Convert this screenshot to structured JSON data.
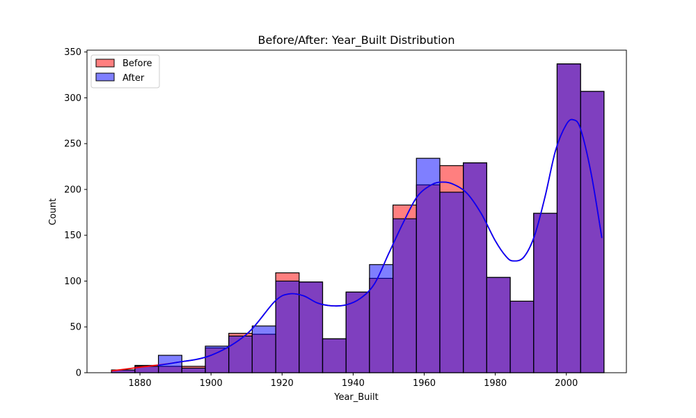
{
  "chart_data": {
    "type": "bar",
    "title": "Before/After: Year_Built Distribution",
    "xlabel": "Year_Built",
    "ylabel": "Count",
    "xlim": [
      1865.1,
      2016.9
    ],
    "ylim": [
      0,
      352
    ],
    "x_ticks": [
      1880,
      1900,
      1920,
      1940,
      1960,
      1980,
      2000
    ],
    "y_ticks": [
      0,
      50,
      100,
      150,
      200,
      250,
      300,
      350
    ],
    "bin_edges": [
      1872,
      1878.6,
      1885.2,
      1891.8,
      1898.4,
      1905,
      1911.6,
      1918.2,
      1924.8,
      1931.4,
      1938,
      1944.6,
      1951.2,
      1957.8,
      1964.4,
      1971,
      1977.6,
      1984.2,
      1990.8,
      1997.4,
      2004,
      2010.6
    ],
    "series": [
      {
        "name": "Before",
        "color": "#ff0000",
        "fill_opacity": 0.5,
        "values": [
          3,
          8,
          7,
          7,
          27,
          43,
          42,
          109,
          99,
          37,
          88,
          103,
          183,
          205,
          226,
          229,
          104,
          78,
          174,
          337,
          307
        ],
        "kde_color": "#ff0000",
        "kde": [
          [
            1872,
            2
          ],
          [
            1880,
            6
          ],
          [
            1890,
            11
          ],
          [
            1900,
            19
          ],
          [
            1910,
            42
          ],
          [
            1918,
            78
          ],
          [
            1922,
            86
          ],
          [
            1926,
            84
          ],
          [
            1930,
            76
          ],
          [
            1934,
            73
          ],
          [
            1938,
            74
          ],
          [
            1942,
            81
          ],
          [
            1946,
            97
          ],
          [
            1950,
            130
          ],
          [
            1954,
            163
          ],
          [
            1958,
            192
          ],
          [
            1962,
            205
          ],
          [
            1965,
            208
          ],
          [
            1968,
            206
          ],
          [
            1972,
            196
          ],
          [
            1976,
            174
          ],
          [
            1980,
            144
          ],
          [
            1983,
            127
          ],
          [
            1985,
            122
          ],
          [
            1988,
            126
          ],
          [
            1991,
            149
          ],
          [
            1994,
            192
          ],
          [
            1997,
            243
          ],
          [
            2000,
            271
          ],
          [
            2002,
            276
          ],
          [
            2004,
            266
          ],
          [
            2007,
            217
          ],
          [
            2010,
            147
          ]
        ]
      },
      {
        "name": "After",
        "color": "#0000ff",
        "fill_opacity": 0.5,
        "values": [
          3,
          7,
          19,
          5,
          29,
          40,
          51,
          100,
          99,
          37,
          88,
          118,
          168,
          234,
          197,
          229,
          104,
          78,
          174,
          337,
          307
        ],
        "kde_color": "#0000ff",
        "kde": [
          [
            1885,
            8
          ],
          [
            1890,
            11
          ],
          [
            1900,
            19
          ],
          [
            1910,
            42
          ],
          [
            1918,
            78
          ],
          [
            1922,
            86
          ],
          [
            1926,
            84
          ],
          [
            1930,
            76
          ],
          [
            1934,
            73
          ],
          [
            1938,
            74
          ],
          [
            1942,
            81
          ],
          [
            1946,
            97
          ],
          [
            1950,
            130
          ],
          [
            1954,
            163
          ],
          [
            1958,
            192
          ],
          [
            1962,
            205
          ],
          [
            1965,
            208
          ],
          [
            1968,
            206
          ],
          [
            1972,
            196
          ],
          [
            1976,
            174
          ],
          [
            1980,
            144
          ],
          [
            1983,
            127
          ],
          [
            1985,
            122
          ],
          [
            1988,
            126
          ],
          [
            1991,
            149
          ],
          [
            1994,
            192
          ],
          [
            1997,
            243
          ],
          [
            2000,
            271
          ],
          [
            2002,
            276
          ],
          [
            2004,
            266
          ],
          [
            2007,
            217
          ],
          [
            2010,
            147
          ]
        ]
      }
    ],
    "overlap_color": "#7f3fbf",
    "legend_position": "upper-left",
    "grid": false
  }
}
